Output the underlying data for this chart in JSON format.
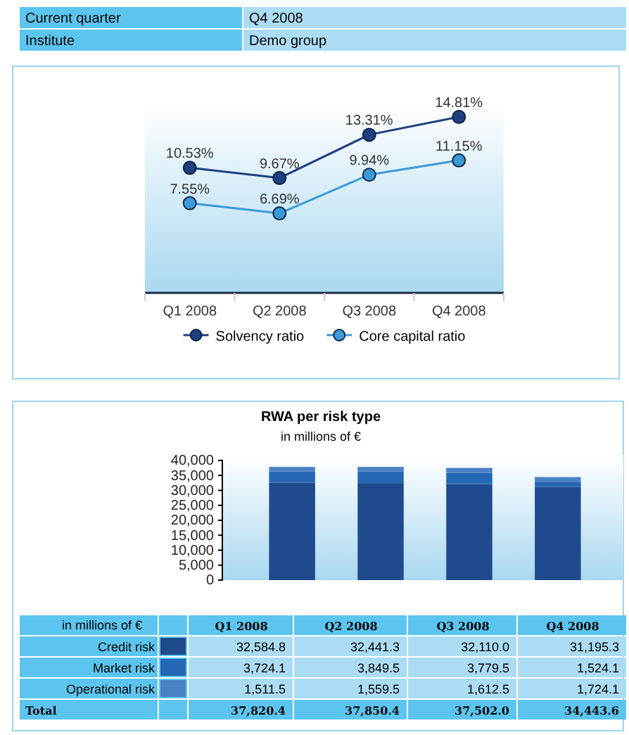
{
  "chart_data": [
    {
      "type": "other",
      "annotations": [
        "Current quarter",
        "Q4 2008",
        "Institute",
        "Demo group"
      ]
    },
    {
      "type": "line",
      "categories": [
        "Q1 2008",
        "Q2 2008",
        "Q3 2008",
        "Q4 2008"
      ],
      "ylim": [
        0,
        16
      ],
      "tick_labels": "x",
      "marker": "circle",
      "legend": "bottom",
      "series": [
        {
          "name": "Solvency ratio",
          "color": "#1f3f80",
          "values": [
            10.53,
            9.67,
            13.31,
            14.81
          ],
          "value_labels": [
            "10.53%",
            "9.67%",
            "13.31%",
            "14.81%"
          ]
        },
        {
          "name": "Core capital ratio",
          "color": "#3a9ad8",
          "values": [
            7.55,
            6.69,
            9.94,
            11.15
          ],
          "value_labels": [
            "7.55%",
            "6.69%",
            "9.94%",
            "11.15%"
          ]
        }
      ]
    },
    {
      "type": "bar",
      "title": "RWA per risk type",
      "subtitle": "in millions of €",
      "legend_title": "in millions of €",
      "categories": [
        "Q1 2008",
        "Q2 2008",
        "Q3 2008",
        "Q4 2008"
      ],
      "stacked": true,
      "legend": "bottom",
      "ylim": [
        0,
        40000
      ],
      "yticks": [
        0,
        {
          "value": 5000,
          "label": "5,000"
        },
        {
          "value": 10000,
          "label": "10,000"
        },
        {
          "value": 15000,
          "label": "15,000"
        },
        {
          "value": 20000,
          "label": "20,000"
        },
        {
          "value": 25000,
          "label": "25,000"
        },
        {
          "value": 30000,
          "label": "30,000"
        },
        {
          "value": 35000,
          "label": "35,000"
        },
        {
          "value": 40000,
          "label": "40,000"
        }
      ],
      "series": [
        {
          "name": "Credit risk",
          "color": "#1f4a8e",
          "values": [
            32584.8,
            32441.3,
            32110.0,
            31195.3
          ],
          "value_labels": [
            "32,584.8",
            "32,441.3",
            "32,110.0",
            "31,195.3"
          ]
        },
        {
          "name": "Market risk",
          "color": "#2467b4",
          "values": [
            3724.1,
            3849.5,
            3779.5,
            1524.1
          ],
          "value_labels": [
            "3,724.1",
            "3,849.5",
            "3,779.5",
            "1,524.1"
          ]
        },
        {
          "name": "Operational risk",
          "color": "#4a80c6",
          "values": [
            1511.5,
            1559.5,
            1612.5,
            1724.1
          ],
          "value_labels": [
            "1,511.5",
            "1,559.5",
            "1,612.5",
            "1,724.1"
          ]
        }
      ],
      "annotations": [
        "Total",
        "37,820.4",
        "37,850.4",
        "37,502.0",
        "34,443.6"
      ]
    }
  ]
}
